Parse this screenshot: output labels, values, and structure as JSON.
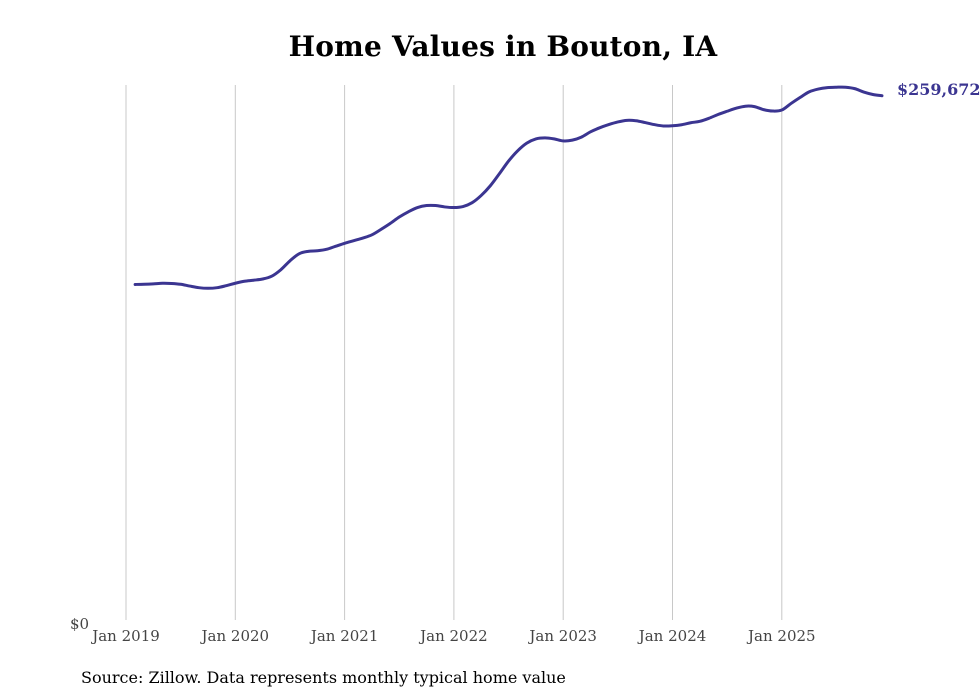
{
  "chart_data": {
    "type": "line",
    "title": "Home Values in Bouton, IA",
    "xlabel": "",
    "ylabel": "",
    "source": "Source: Zillow. Data represents monthly typical home value",
    "y_zero_label": "$0",
    "ylim": [
      0,
      265000
    ],
    "x_tick_labels": [
      "Jan 2019",
      "Jan 2020",
      "Jan 2021",
      "Jan 2022",
      "Jan 2023",
      "Jan 2024",
      "Jan 2025"
    ],
    "grid": "vertical",
    "legend": "none",
    "line_color": "#3b3591",
    "end_label": "$259,672",
    "series": [
      {
        "name": "Bouton, IA",
        "start": "Feb 2019",
        "frequency": "monthly",
        "values": [
          166200,
          166300,
          166500,
          166800,
          166700,
          166300,
          165400,
          164600,
          164300,
          164600,
          165600,
          166800,
          167800,
          168300,
          168900,
          170300,
          173500,
          177900,
          181400,
          182600,
          182900,
          183600,
          185100,
          186600,
          187900,
          189200,
          190800,
          193500,
          196400,
          199600,
          202200,
          204300,
          205300,
          205300,
          204600,
          204300,
          204800,
          206700,
          210300,
          215100,
          221100,
          227300,
          232400,
          236200,
          238300,
          238800,
          238300,
          237300,
          237700,
          239200,
          241800,
          243800,
          245400,
          246700,
          247500,
          247300,
          246400,
          245400,
          244700,
          244800,
          245300,
          246300,
          247000,
          248500,
          250400,
          252000,
          253500,
          254500,
          254300,
          252800,
          252100,
          252600,
          255800,
          258800,
          261600,
          263000,
          263700,
          263900,
          263900,
          263200,
          261500,
          260300,
          259672
        ]
      }
    ]
  }
}
